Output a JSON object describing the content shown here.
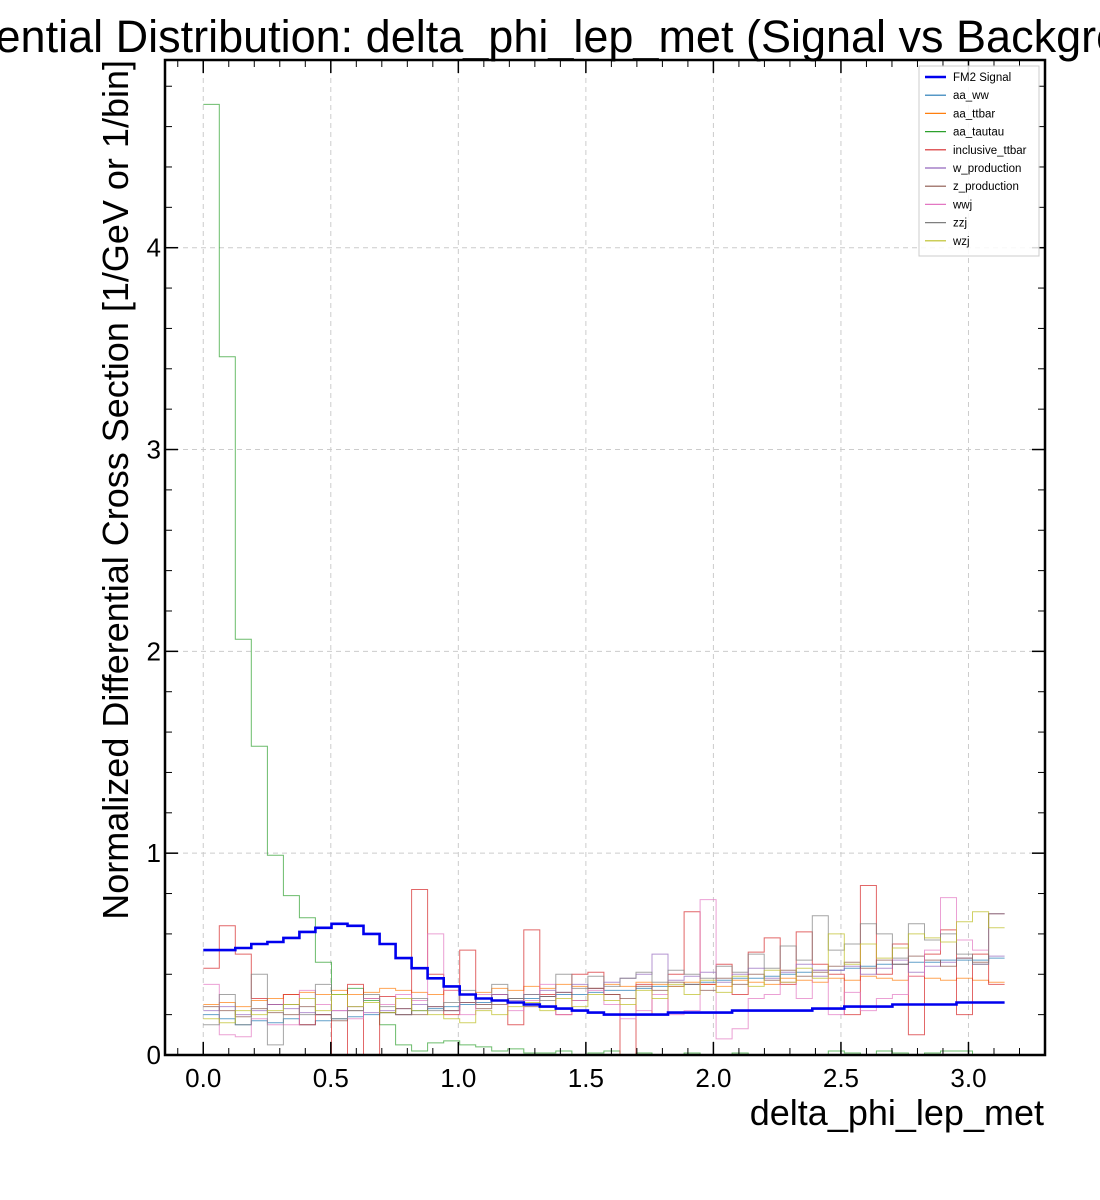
{
  "chart_data": {
    "type": "line",
    "drawstyle": "step",
    "title": "Differential Distribution: delta_phi_lep_met (Signal vs Background)",
    "xlabel": "delta_phi_lep_met",
    "ylabel": "Normalized Differential Cross Section [1/GeV or 1/bin]",
    "xlim": [
      -0.15,
      3.3
    ],
    "ylim": [
      0,
      4.93
    ],
    "xticks": [
      "0.0",
      "0.5",
      "1.0",
      "1.5",
      "2.0",
      "2.5",
      "3.0"
    ],
    "yticks": [
      "0",
      "1",
      "2",
      "3",
      "4"
    ],
    "grid": true,
    "legend_position": "top-right",
    "bin_range": [
      0,
      3.1416
    ],
    "n_bins": 50,
    "series": [
      {
        "name": "FM2 Signal",
        "color": "#0000ee",
        "width": 2.6,
        "values": [
          0.52,
          0.52,
          0.53,
          0.55,
          0.56,
          0.58,
          0.61,
          0.63,
          0.65,
          0.64,
          0.6,
          0.55,
          0.48,
          0.43,
          0.38,
          0.34,
          0.3,
          0.28,
          0.27,
          0.26,
          0.25,
          0.24,
          0.23,
          0.22,
          0.21,
          0.2,
          0.2,
          0.2,
          0.2,
          0.21,
          0.21,
          0.21,
          0.21,
          0.22,
          0.22,
          0.22,
          0.22,
          0.22,
          0.23,
          0.23,
          0.24,
          0.24,
          0.24,
          0.25,
          0.25,
          0.25,
          0.25,
          0.26,
          0.26,
          0.26
        ]
      },
      {
        "name": "aa_ww",
        "color": "#1f77b4",
        "width": 1.0,
        "values": [
          0.2,
          0.18,
          0.15,
          0.17,
          0.16,
          0.18,
          0.15,
          0.17,
          0.18,
          0.19,
          0.2,
          0.21,
          0.2,
          0.22,
          0.23,
          0.24,
          0.25,
          0.26,
          0.27,
          0.28,
          0.28,
          0.29,
          0.3,
          0.3,
          0.31,
          0.32,
          0.32,
          0.33,
          0.34,
          0.34,
          0.35,
          0.36,
          0.37,
          0.38,
          0.38,
          0.39,
          0.4,
          0.41,
          0.42,
          0.42,
          0.43,
          0.44,
          0.45,
          0.45,
          0.46,
          0.46,
          0.47,
          0.47,
          0.47,
          0.48
        ]
      },
      {
        "name": "aa_ttbar",
        "color": "#ff7f0e",
        "width": 1.0,
        "values": [
          0.25,
          0.26,
          0.24,
          0.27,
          0.28,
          0.3,
          0.31,
          0.3,
          0.32,
          0.3,
          0.31,
          0.33,
          0.32,
          0.31,
          0.3,
          0.32,
          0.3,
          0.31,
          0.33,
          0.32,
          0.34,
          0.33,
          0.35,
          0.34,
          0.33,
          0.35,
          0.34,
          0.36,
          0.35,
          0.34,
          0.36,
          0.35,
          0.34,
          0.37,
          0.36,
          0.35,
          0.38,
          0.37,
          0.36,
          0.38,
          0.37,
          0.39,
          0.38,
          0.37,
          0.39,
          0.38,
          0.37,
          0.38,
          0.37,
          0.36
        ]
      },
      {
        "name": "aa_tautau",
        "color": "#2ca02c",
        "width": 1.0,
        "values": [
          4.71,
          3.46,
          2.06,
          1.53,
          0.99,
          0.79,
          0.68,
          0.46,
          0.3,
          0.33,
          0.27,
          0.15,
          0.05,
          0.02,
          0.06,
          0.07,
          0.05,
          0.04,
          0.02,
          0.03,
          0.01,
          0.01,
          0.02,
          0,
          0.01,
          0.02,
          0,
          0.01,
          0,
          0,
          0.01,
          0,
          0,
          0.01,
          0,
          0,
          0,
          0,
          0,
          0.02,
          0.01,
          0,
          0.02,
          0.01,
          0,
          0.01,
          0.02,
          0.02,
          0,
          0
        ]
      },
      {
        "name": "inclusive_ttbar",
        "color": "#d62728",
        "width": 1.0,
        "values": [
          0.43,
          0.64,
          0.5,
          0.28,
          0.25,
          0.3,
          0.15,
          0.2,
          0.0,
          0.35,
          0.0,
          0.29,
          0.2,
          0.82,
          0.4,
          0.2,
          0.52,
          0.25,
          0.3,
          0.15,
          0.62,
          0.3,
          0.2,
          0.4,
          0.41,
          0.3,
          0.0,
          0.35,
          0.2,
          0.4,
          0.71,
          0.35,
          0.45,
          0.3,
          0.51,
          0.58,
          0.35,
          0.61,
          0.45,
          0.4,
          0.2,
          0.84,
          0.4,
          0.55,
          0.1,
          0.5,
          0.62,
          0.2,
          0.5,
          0.35
        ]
      },
      {
        "name": "w_production",
        "color": "#9467bd",
        "width": 1.0,
        "values": [
          0.22,
          0.24,
          0.2,
          0.22,
          0.25,
          0.23,
          0.21,
          0.2,
          0.22,
          0.24,
          0.21,
          0.22,
          0.23,
          0.25,
          0.24,
          0.22,
          0.26,
          0.28,
          0.3,
          0.27,
          0.3,
          0.32,
          0.31,
          0.35,
          0.33,
          0.36,
          0.38,
          0.4,
          0.5,
          0.37,
          0.39,
          0.41,
          0.36,
          0.4,
          0.43,
          0.38,
          0.41,
          0.45,
          0.39,
          0.42,
          0.44,
          0.4,
          0.43,
          0.47,
          0.41,
          0.44,
          0.46,
          0.48,
          0.45,
          0.49
        ]
      },
      {
        "name": "z_production",
        "color": "#8c564b",
        "width": 1.0,
        "values": [
          0.24,
          0.22,
          0.19,
          0.23,
          0.21,
          0.2,
          0.24,
          0.2,
          0.17,
          0.22,
          0.28,
          0.21,
          0.23,
          0.2,
          0.24,
          0.22,
          0.26,
          0.23,
          0.25,
          0.28,
          0.24,
          0.29,
          0.31,
          0.27,
          0.33,
          0.3,
          0.28,
          0.34,
          0.32,
          0.36,
          0.35,
          0.32,
          0.38,
          0.35,
          0.4,
          0.37,
          0.42,
          0.39,
          0.41,
          0.44,
          0.46,
          0.43,
          0.47,
          0.45,
          0.49,
          0.47,
          0.44,
          0.48,
          0.46,
          0.7
        ]
      },
      {
        "name": "wwj",
        "color": "#e377c2",
        "width": 1.0,
        "values": [
          0.35,
          0.1,
          0.09,
          0.18,
          0.15,
          0.15,
          0.32,
          0.25,
          0.22,
          0.18,
          0.28,
          0.25,
          0.3,
          0.27,
          0.6,
          0.32,
          0.2,
          0.3,
          0.27,
          0.22,
          0.27,
          0.35,
          0.2,
          0.27,
          0.32,
          0.25,
          0.18,
          0.22,
          0.3,
          0.2,
          0.22,
          0.77,
          0.08,
          0.13,
          0.28,
          0.3,
          0.36,
          0.28,
          0.42,
          0.2,
          0.31,
          0.22,
          0.28,
          0.3,
          0.39,
          0.52,
          0.78,
          0.57,
          0.52,
          0.7
        ]
      },
      {
        "name": "zzj",
        "color": "#7f7f7f",
        "width": 1.0,
        "values": [
          0.15,
          0.3,
          0.15,
          0.4,
          0.05,
          0.25,
          0.2,
          0.35,
          0.18,
          0.22,
          0.3,
          0.24,
          0.2,
          0.28,
          0.22,
          0.26,
          0.32,
          0.25,
          0.35,
          0.28,
          0.3,
          0.27,
          0.4,
          0.33,
          0.39,
          0.34,
          0.38,
          0.41,
          0.36,
          0.42,
          0.4,
          0.38,
          0.44,
          0.41,
          0.5,
          0.43,
          0.54,
          0.47,
          0.69,
          0.52,
          0.55,
          0.65,
          0.6,
          0.48,
          0.65,
          0.57,
          0.6,
          0.5,
          0.45,
          0.7
        ]
      },
      {
        "name": "wzj",
        "color": "#bcbd22",
        "width": 1.0,
        "values": [
          0.18,
          0.16,
          0.22,
          0.2,
          0.22,
          0.25,
          0.28,
          0.22,
          0.3,
          0.24,
          0.26,
          0.21,
          0.28,
          0.22,
          0.2,
          0.18,
          0.16,
          0.22,
          0.2,
          0.24,
          0.26,
          0.22,
          0.28,
          0.24,
          0.3,
          0.27,
          0.25,
          0.32,
          0.28,
          0.35,
          0.3,
          0.37,
          0.31,
          0.39,
          0.34,
          0.42,
          0.36,
          0.43,
          0.38,
          0.6,
          0.45,
          0.55,
          0.48,
          0.53,
          0.6,
          0.58,
          0.56,
          0.66,
          0.71,
          0.63
        ]
      }
    ]
  }
}
